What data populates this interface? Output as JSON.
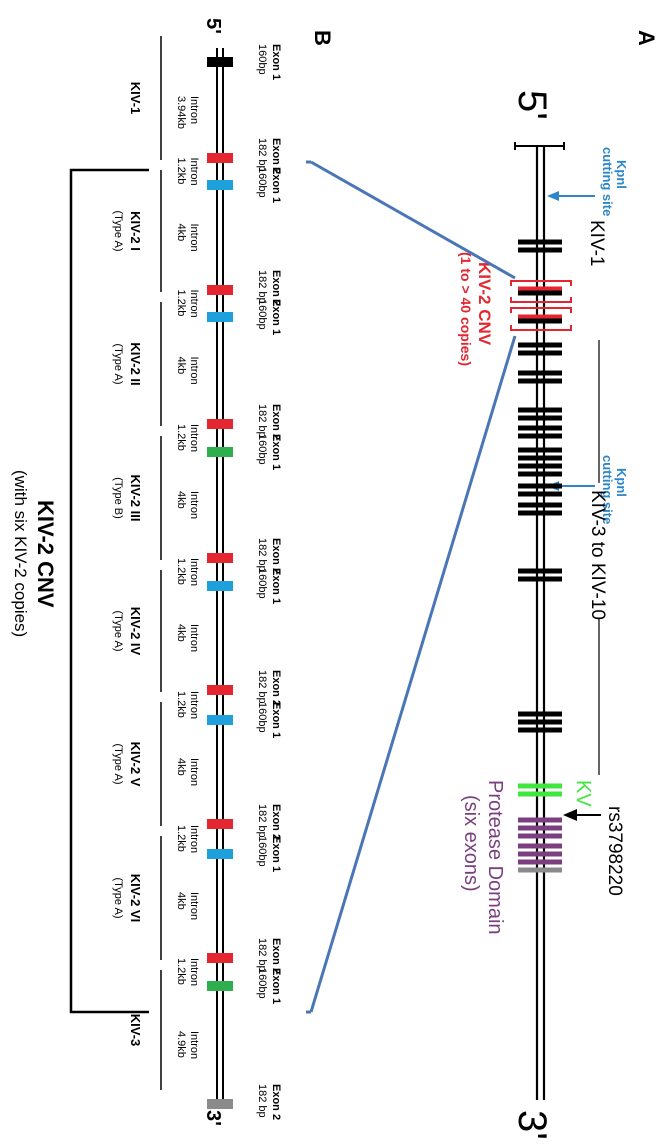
{
  "colors": {
    "line": "#000000",
    "red": "#e3262f",
    "blue": "#1ea0dc",
    "green": "#2eae4f",
    "bright_green": "#3ee63e",
    "purple": "#7b3f7f",
    "gray": "#8a8a8a",
    "connector": "#4a76b6",
    "kpn_blue": "#2e86c8",
    "cnv_red": "#e3262f"
  },
  "panel_a": {
    "label": "A",
    "five_prime": "5'",
    "three_prime": "3'",
    "kpnl_1": {
      "line1": "Kpnl",
      "line2": "cutting site"
    },
    "kpnl_2": {
      "line1": "Kpnl",
      "line2": "cutting site"
    },
    "kiv1": "KIV-1",
    "kiv3_10": "KIV-3 to KIV-10",
    "kv": "KV",
    "rs": "rs3798220",
    "protease_1": "Protease Domain",
    "protease_2": "(six exons)",
    "cnv_1": "KIV-2 CNV",
    "cnv_2": "(1 to > 40 copies)"
  },
  "panel_b": {
    "label": "B",
    "five_prime": "5'",
    "three_prime": "3'",
    "exon1": "Exon 1",
    "exon2": "Exon 2",
    "size_160": "160bp",
    "size_182": "182 bp",
    "intron": "Intron",
    "intron_first": "3.94kb",
    "intron_1_2": "1.2kb",
    "intron_4": "4kb",
    "intron_last": "4.9kb",
    "segments": [
      {
        "name": "KIV-1",
        "type": ""
      },
      {
        "name": "KIV-2 I",
        "type": "(Type A)"
      },
      {
        "name": "KIV-2 II",
        "type": "(Type A)"
      },
      {
        "name": "KIV-2 III",
        "type": "(Type B)"
      },
      {
        "name": "KIV-2 IV",
        "type": "(Type A)"
      },
      {
        "name": "KIV-2 V",
        "type": "(Type A)"
      },
      {
        "name": "KIV-2 VI",
        "type": "(Type A)"
      },
      {
        "name": "KIV-3",
        "type": ""
      }
    ],
    "cnv_title": "KIV-2 CNV",
    "cnv_sub": "(with six KIV-2 copies)"
  }
}
